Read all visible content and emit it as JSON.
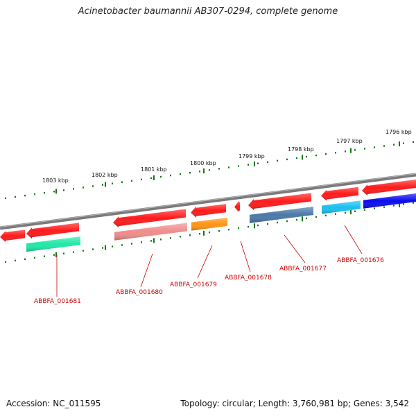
{
  "header": {
    "title": "Acinetobacter baumannii AB307-0294, complete genome"
  },
  "footer": {
    "accession": "Accession: NC_011595",
    "stats": "Topology: circular; Length: 3,760,981 bp; Genes: 3,542"
  },
  "colors": {
    "backbone": "#7a7a7a",
    "forward_strand": "#ff1a1a",
    "tick_major": "#117711",
    "tick_minor": "#117711",
    "label": "#cc0000"
  },
  "scale": {
    "labels": [
      "1803 kbp",
      "1802 kbp",
      "1801 kbp",
      "1800 kbp",
      "1799 kbp",
      "1798 kbp",
      "1797 kbp",
      "1796 kbp"
    ]
  },
  "genes": [
    {
      "name": "ABBFA_001681",
      "color": "#20e8a8"
    },
    {
      "name": "ABBFA_001680",
      "color": "#f08c8c"
    },
    {
      "name": "ABBFA_001679",
      "color": "#ff9410"
    },
    {
      "name": "ABBFA_001678",
      "color": ""
    },
    {
      "name": "ABBFA_001677",
      "color": "#4a78a8"
    },
    {
      "name": "ABBFA_001676",
      "color": "#18c0f0"
    },
    {
      "name": "",
      "color": "#0a0af0"
    }
  ]
}
